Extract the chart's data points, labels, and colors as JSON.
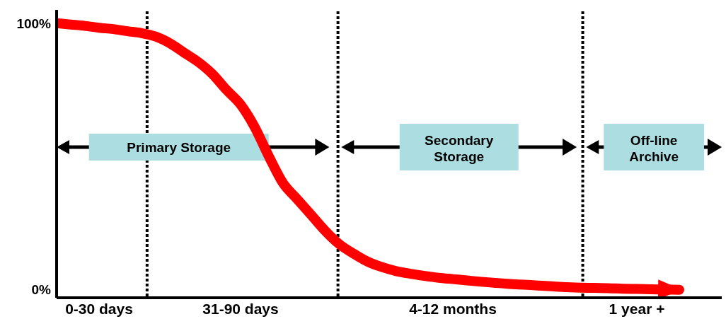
{
  "chart_data": {
    "type": "line",
    "categories": [
      null,
      null,
      null,
      "0-30 days",
      null,
      null,
      null,
      null,
      null,
      null,
      null,
      null,
      null,
      "31-90 days",
      null,
      null,
      null,
      null,
      null,
      null,
      null,
      null,
      null,
      null,
      null,
      null,
      null,
      null,
      "4-12 months",
      null,
      null,
      null,
      null,
      null,
      null,
      null,
      null,
      null,
      null,
      null,
      null,
      "1 year +",
      null,
      null,
      null,
      null,
      null,
      null
    ],
    "series": [
      {
        "color": "#ff0000",
        "values": [
          100,
          99.5,
          99,
          98.3,
          97.8,
          97,
          96.3,
          95,
          92.5,
          89,
          85.5,
          81,
          75,
          69.5,
          61,
          50,
          40,
          34,
          28,
          22,
          17,
          13.5,
          10.5,
          8.5,
          7,
          6,
          5.2,
          4.5,
          4,
          3.5,
          3,
          2.6,
          2.2,
          1.9,
          1.6,
          1.3,
          1,
          0.8,
          0.7,
          0.6,
          0.4,
          0.3,
          0.2,
          0.1,
          0,
          null,
          null,
          null
        ]
      }
    ],
    "ylim": [
      -3,
      105
    ],
    "yticks": [
      {
        "value": 0,
        "label": "0%"
      },
      {
        "value": 100,
        "label": "100%"
      }
    ],
    "annotations": [
      "Primary Storage",
      "Secondary Storage",
      "Off-line Archive"
    ],
    "legend": false,
    "marker": "none",
    "line_style": "solid"
  }
}
